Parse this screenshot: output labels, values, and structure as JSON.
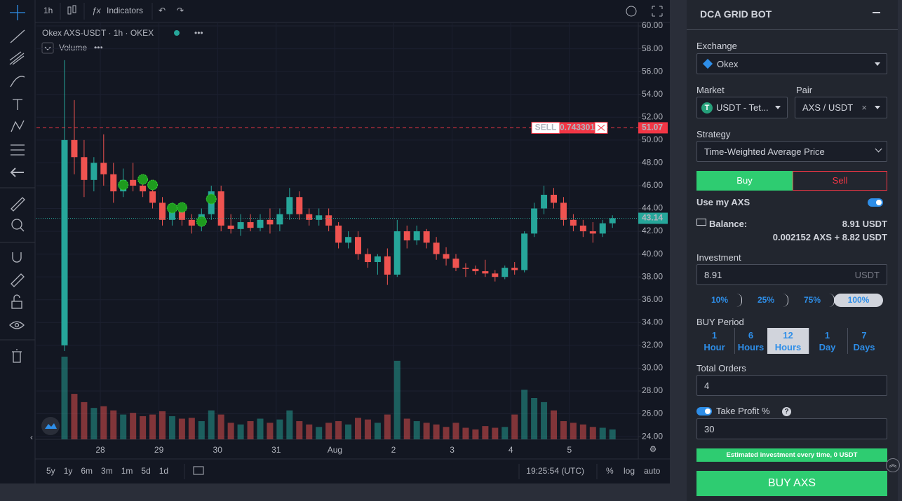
{
  "toolbar": {
    "interval": "1h",
    "indicators": "Indicators"
  },
  "legend": {
    "symbol": "Okex AXS-USDT · 1h · OKEX",
    "volume": "Volume"
  },
  "chart_data": {
    "type": "candlestick",
    "up_color": "#26a69a",
    "down_color": "#ef5350",
    "grid": true,
    "ylim": [
      23.76,
      60.31
    ],
    "yticks": [
      {
        "value": 24,
        "label": "24.00"
      },
      {
        "value": 26,
        "label": "26.00"
      },
      {
        "value": 28,
        "label": "28.00"
      },
      {
        "value": 30,
        "label": "30.00"
      },
      {
        "value": 32,
        "label": "32.00"
      },
      {
        "value": 34,
        "label": "34.00"
      },
      {
        "value": 36,
        "label": "36.00"
      },
      {
        "value": 38,
        "label": "38.00"
      },
      {
        "value": 40,
        "label": "40.00"
      },
      {
        "value": 42,
        "label": "42.00"
      },
      {
        "value": 44,
        "label": "44.00"
      },
      {
        "value": 46,
        "label": "46.00"
      },
      {
        "value": 48,
        "label": "48.00"
      },
      {
        "value": 50,
        "label": "50.00"
      },
      {
        "value": 52,
        "label": "52.00"
      },
      {
        "value": 54,
        "label": "54.00"
      },
      {
        "value": 56,
        "label": "56.00"
      },
      {
        "value": 58,
        "label": "58.00"
      },
      {
        "value": 60,
        "label": "60.00"
      }
    ],
    "xtick_labels": [
      "28",
      "29",
      "30",
      "31",
      "Aug",
      "2",
      "3",
      "4",
      "5"
    ],
    "candles": [
      [
        32,
        57,
        31.5,
        50
      ],
      [
        50,
        53.5,
        47,
        48.5
      ],
      [
        48.5,
        50,
        45,
        46.5
      ],
      [
        46.5,
        48.5,
        45.5,
        48
      ],
      [
        48,
        50.5,
        46,
        47
      ],
      [
        47,
        48,
        44.5,
        45.5
      ],
      [
        45.5,
        47.5,
        45,
        46.5
      ],
      [
        46.5,
        48,
        45.5,
        46
      ],
      [
        46,
        47,
        45,
        45.5
      ],
      [
        45.5,
        46.5,
        44,
        44.5
      ],
      [
        44.5,
        45,
        42.5,
        43
      ],
      [
        43,
        44.5,
        42.5,
        44
      ],
      [
        44,
        44.5,
        42.5,
        43
      ],
      [
        43,
        43.5,
        41.8,
        42.5
      ],
      [
        42.5,
        44,
        42,
        43.5
      ],
      [
        43.5,
        46,
        43,
        45.5
      ],
      [
        45.5,
        46,
        42,
        42.5
      ],
      [
        42.5,
        43.5,
        41.8,
        42.2
      ],
      [
        42.2,
        43.5,
        41.6,
        42.8
      ],
      [
        42.8,
        43.5,
        42,
        42.3
      ],
      [
        42.3,
        43.5,
        42,
        43
      ],
      [
        43,
        44,
        41.8,
        42.6
      ],
      [
        42.6,
        44,
        42,
        43.5
      ],
      [
        43.5,
        45.8,
        43,
        45
      ],
      [
        45,
        45.5,
        43,
        43.5
      ],
      [
        43.5,
        44,
        42.5,
        43
      ],
      [
        43,
        44,
        42.5,
        43.4
      ],
      [
        43.4,
        44,
        42,
        42.5
      ],
      [
        42.5,
        42.8,
        40.5,
        41
      ],
      [
        41,
        42,
        40.5,
        41.5
      ],
      [
        41.5,
        42,
        39.5,
        40
      ],
      [
        40,
        40.5,
        38.8,
        39.3
      ],
      [
        39.3,
        40,
        38.2,
        39.8
      ],
      [
        39.8,
        40.5,
        37.3,
        38.2
      ],
      [
        38.2,
        43,
        38,
        42
      ],
      [
        42,
        42.5,
        40.5,
        41.2
      ],
      [
        41.2,
        42.5,
        40.8,
        42
      ],
      [
        42,
        42.2,
        40.5,
        41
      ],
      [
        41,
        41.5,
        39.5,
        40
      ],
      [
        40,
        40.6,
        39,
        39.6
      ],
      [
        39.6,
        40,
        38.5,
        38.8
      ],
      [
        38.8,
        39.2,
        38,
        38.7
      ],
      [
        38.7,
        39,
        38.2,
        38.5
      ],
      [
        38.5,
        39.5,
        38,
        38.3
      ],
      [
        38.3,
        38.6,
        37.6,
        38
      ],
      [
        38,
        39,
        37.8,
        38.8
      ],
      [
        38.8,
        39.3,
        38.2,
        38.6
      ],
      [
        38.6,
        42,
        38.4,
        41.8
      ],
      [
        41.8,
        44.5,
        41.5,
        44
      ],
      [
        44,
        46,
        43.5,
        45.2
      ],
      [
        45.2,
        45.8,
        44,
        44.5
      ],
      [
        44.5,
        45,
        42.5,
        43
      ],
      [
        43,
        43.5,
        42,
        42.5
      ],
      [
        42.5,
        43,
        41.5,
        42
      ],
      [
        42,
        42.8,
        41,
        41.8
      ],
      [
        41.8,
        43,
        41.5,
        42.7
      ],
      [
        42.7,
        43.4,
        42.3,
        43.14
      ]
    ],
    "volume": [
      100,
      55,
      45,
      38,
      40,
      35,
      30,
      32,
      28,
      30,
      34,
      28,
      25,
      26,
      22,
      35,
      30,
      20,
      18,
      22,
      25,
      20,
      24,
      35,
      22,
      18,
      15,
      20,
      22,
      18,
      26,
      24,
      20,
      30,
      95,
      25,
      22,
      20,
      18,
      15,
      20,
      14,
      12,
      16,
      14,
      15,
      30,
      60,
      50,
      45,
      35,
      22,
      20,
      18,
      15,
      14,
      12
    ],
    "volume_max": 100,
    "buy_markers": [
      {
        "candle": 6,
        "price": 46.06
      },
      {
        "candle": 8,
        "price": 46.55
      },
      {
        "candle": 9,
        "price": 46.06
      },
      {
        "candle": 11,
        "price": 44.03
      },
      {
        "candle": 12,
        "price": 44.09
      },
      {
        "candle": 14,
        "price": 42.86
      },
      {
        "candle": 15,
        "price": 44.83
      }
    ],
    "sell_line": {
      "price": 51.07,
      "tag": "SELL",
      "amount": 0.743301,
      "color": "#f23645"
    },
    "last_price": {
      "price": 43.14,
      "color": "#26a69a"
    }
  },
  "bottom_bar": {
    "ranges": [
      "5y",
      "1y",
      "6m",
      "3m",
      "1m",
      "5d",
      "1d"
    ],
    "time": "19:25:54 (UTC)",
    "percent": "%",
    "log": "log",
    "auto": "auto"
  },
  "panel": {
    "title": "DCA GRID BOT",
    "exchange": {
      "label": "Exchange",
      "value": "Okex"
    },
    "market": {
      "label": "Market",
      "value": "USDT - Tet..."
    },
    "pair": {
      "label": "Pair",
      "value": "AXS / USDT"
    },
    "strategy": {
      "label": "Strategy",
      "value": "Time-Weighted Average Price"
    },
    "side": {
      "buy": "Buy",
      "sell": "Sell"
    },
    "use_my": {
      "label": "Use my AXS",
      "on": true
    },
    "balance": {
      "label": "Balance:",
      "line1": "8.91 USDT",
      "line2": "0.002152 AXS + 8.82 USDT"
    },
    "investment": {
      "label": "Investment",
      "value": "8.91",
      "unit": "USDT"
    },
    "percents": {
      "options": [
        "10%",
        "25%",
        "75%",
        "100%"
      ],
      "selected": 3
    },
    "buy_period": {
      "label": "BUY Period",
      "selected": 2,
      "options": [
        {
          "n": "1",
          "unit": "Hour"
        },
        {
          "n": "6",
          "unit": "Hours"
        },
        {
          "n": "12",
          "unit": "Hours"
        },
        {
          "n": "1",
          "unit": "Day"
        },
        {
          "n": "7",
          "unit": "Days"
        }
      ]
    },
    "total_orders": {
      "label": "Total Orders",
      "value": "4"
    },
    "take_profit": {
      "label": "Take Profit %",
      "value": "30",
      "on": true
    },
    "estimate": "Estimated investment every time, 0 USDT",
    "submit": "BUY AXS"
  }
}
